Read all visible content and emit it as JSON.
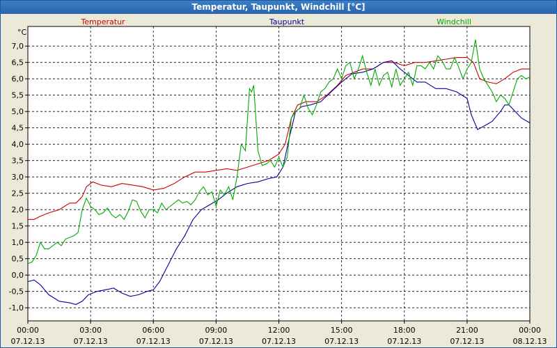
{
  "window": {
    "title": "Temperatur, Taupunkt, Windchill [°C]"
  },
  "chart_data": {
    "type": "line",
    "title": "Temperatur, Taupunkt, Windchill [°C]",
    "ylabel": "°C",
    "ylim": [
      -1.4,
      7.6
    ],
    "y_ticks": [
      "-1,0",
      "-0,5",
      "0,0",
      "0,5",
      "1,0",
      "1,5",
      "2,0",
      "2,5",
      "3,0",
      "3,5",
      "4,0",
      "4,5",
      "5,0",
      "5,5",
      "6,0",
      "6,5",
      "7,0"
    ],
    "x_ticks": [
      {
        "time": "00:00",
        "date": "07.12.13"
      },
      {
        "time": "03:00",
        "date": "07.12.13"
      },
      {
        "time": "06:00",
        "date": "07.12.13"
      },
      {
        "time": "09:00",
        "date": "07.12.13"
      },
      {
        "time": "12:00",
        "date": "07.12.13"
      },
      {
        "time": "15:00",
        "date": "07.12.13"
      },
      {
        "time": "18:00",
        "date": "07.12.13"
      },
      {
        "time": "21:00",
        "date": "07.12.13"
      },
      {
        "time": "00:00",
        "date": "08.12.13"
      }
    ],
    "grid": true,
    "series": [
      {
        "name": "Temperatur",
        "color": "#cc0000",
        "points": [
          [
            0.0,
            1.7
          ],
          [
            0.3,
            1.7
          ],
          [
            0.6,
            1.8
          ],
          [
            1.0,
            1.9
          ],
          [
            1.5,
            2.0
          ],
          [
            2.0,
            2.2
          ],
          [
            2.3,
            2.2
          ],
          [
            2.6,
            2.4
          ],
          [
            2.8,
            2.7
          ],
          [
            3.1,
            2.85
          ],
          [
            3.5,
            2.75
          ],
          [
            4.0,
            2.7
          ],
          [
            4.5,
            2.8
          ],
          [
            5.0,
            2.75
          ],
          [
            5.5,
            2.7
          ],
          [
            6.0,
            2.6
          ],
          [
            6.5,
            2.65
          ],
          [
            7.0,
            2.8
          ],
          [
            7.5,
            3.0
          ],
          [
            8.0,
            3.15
          ],
          [
            8.5,
            3.15
          ],
          [
            9.0,
            3.2
          ],
          [
            9.5,
            3.25
          ],
          [
            10.0,
            3.2
          ],
          [
            10.5,
            3.3
          ],
          [
            11.0,
            3.4
          ],
          [
            11.5,
            3.5
          ],
          [
            12.0,
            3.7
          ],
          [
            12.3,
            4.0
          ],
          [
            12.6,
            4.8
          ],
          [
            12.9,
            5.2
          ],
          [
            13.3,
            5.3
          ],
          [
            13.8,
            5.3
          ],
          [
            14.3,
            5.5
          ],
          [
            14.8,
            5.8
          ],
          [
            15.2,
            6.1
          ],
          [
            15.6,
            6.2
          ],
          [
            16.0,
            6.3
          ],
          [
            16.5,
            6.3
          ],
          [
            17.0,
            6.5
          ],
          [
            17.5,
            6.5
          ],
          [
            18.0,
            6.4
          ],
          [
            18.5,
            6.5
          ],
          [
            19.0,
            6.5
          ],
          [
            19.5,
            6.55
          ],
          [
            20.0,
            6.6
          ],
          [
            20.5,
            6.65
          ],
          [
            21.0,
            6.65
          ],
          [
            21.3,
            6.5
          ],
          [
            21.6,
            6.0
          ],
          [
            22.0,
            5.9
          ],
          [
            22.4,
            5.85
          ],
          [
            22.8,
            6.0
          ],
          [
            23.2,
            6.2
          ],
          [
            23.6,
            6.3
          ],
          [
            24.0,
            6.3
          ]
        ]
      },
      {
        "name": "Taupunkt",
        "color": "#000099",
        "points": [
          [
            0.0,
            -0.2
          ],
          [
            0.3,
            -0.15
          ],
          [
            0.6,
            -0.3
          ],
          [
            1.0,
            -0.6
          ],
          [
            1.5,
            -0.8
          ],
          [
            2.0,
            -0.85
          ],
          [
            2.3,
            -0.9
          ],
          [
            2.6,
            -0.8
          ],
          [
            2.9,
            -0.6
          ],
          [
            3.3,
            -0.5
          ],
          [
            3.7,
            -0.45
          ],
          [
            4.1,
            -0.4
          ],
          [
            4.5,
            -0.55
          ],
          [
            4.9,
            -0.65
          ],
          [
            5.3,
            -0.6
          ],
          [
            5.7,
            -0.5
          ],
          [
            6.0,
            -0.45
          ],
          [
            6.3,
            -0.2
          ],
          [
            6.7,
            0.3
          ],
          [
            7.1,
            0.8
          ],
          [
            7.5,
            1.2
          ],
          [
            7.9,
            1.7
          ],
          [
            8.3,
            2.0
          ],
          [
            8.7,
            2.15
          ],
          [
            9.1,
            2.3
          ],
          [
            9.5,
            2.5
          ],
          [
            10.0,
            2.7
          ],
          [
            10.5,
            2.8
          ],
          [
            11.0,
            2.85
          ],
          [
            11.5,
            2.95
          ],
          [
            11.9,
            3.0
          ],
          [
            12.2,
            3.3
          ],
          [
            12.5,
            4.2
          ],
          [
            12.8,
            5.0
          ],
          [
            13.1,
            5.15
          ],
          [
            13.5,
            5.2
          ],
          [
            14.0,
            5.3
          ],
          [
            14.5,
            5.6
          ],
          [
            15.0,
            5.9
          ],
          [
            15.5,
            6.15
          ],
          [
            16.0,
            6.2
          ],
          [
            16.5,
            6.3
          ],
          [
            17.0,
            6.5
          ],
          [
            17.4,
            6.55
          ],
          [
            17.8,
            6.3
          ],
          [
            18.2,
            6.1
          ],
          [
            18.6,
            5.9
          ],
          [
            19.0,
            5.9
          ],
          [
            19.5,
            5.7
          ],
          [
            20.0,
            5.7
          ],
          [
            20.5,
            5.6
          ],
          [
            21.0,
            5.4
          ],
          [
            21.2,
            4.9
          ],
          [
            21.5,
            4.45
          ],
          [
            21.8,
            4.55
          ],
          [
            22.2,
            4.7
          ],
          [
            22.6,
            5.0
          ],
          [
            22.8,
            5.2
          ],
          [
            23.0,
            5.2
          ],
          [
            23.3,
            5.0
          ],
          [
            23.6,
            4.8
          ],
          [
            24.0,
            4.65
          ]
        ]
      },
      {
        "name": "Windchill",
        "color": "#00aa00",
        "points": [
          [
            0.0,
            0.35
          ],
          [
            0.2,
            0.4
          ],
          [
            0.4,
            0.6
          ],
          [
            0.6,
            1.0
          ],
          [
            0.8,
            0.8
          ],
          [
            1.0,
            0.8
          ],
          [
            1.2,
            0.9
          ],
          [
            1.4,
            1.0
          ],
          [
            1.6,
            0.9
          ],
          [
            1.8,
            1.1
          ],
          [
            2.0,
            1.15
          ],
          [
            2.2,
            1.2
          ],
          [
            2.4,
            1.3
          ],
          [
            2.6,
            2.0
          ],
          [
            2.8,
            2.35
          ],
          [
            3.0,
            2.1
          ],
          [
            3.2,
            2.0
          ],
          [
            3.4,
            1.85
          ],
          [
            3.6,
            1.9
          ],
          [
            3.8,
            2.05
          ],
          [
            4.0,
            1.85
          ],
          [
            4.2,
            1.75
          ],
          [
            4.4,
            1.85
          ],
          [
            4.6,
            1.7
          ],
          [
            4.8,
            1.95
          ],
          [
            5.0,
            2.3
          ],
          [
            5.2,
            2.25
          ],
          [
            5.4,
            1.95
          ],
          [
            5.6,
            1.75
          ],
          [
            5.8,
            2.0
          ],
          [
            6.0,
            2.0
          ],
          [
            6.2,
            1.9
          ],
          [
            6.4,
            2.2
          ],
          [
            6.6,
            2.0
          ],
          [
            6.8,
            2.1
          ],
          [
            7.0,
            2.2
          ],
          [
            7.2,
            2.3
          ],
          [
            7.4,
            2.2
          ],
          [
            7.6,
            2.25
          ],
          [
            7.8,
            2.15
          ],
          [
            8.0,
            2.3
          ],
          [
            8.2,
            2.55
          ],
          [
            8.4,
            2.7
          ],
          [
            8.6,
            2.45
          ],
          [
            8.8,
            2.55
          ],
          [
            9.0,
            2.1
          ],
          [
            9.2,
            2.6
          ],
          [
            9.4,
            2.45
          ],
          [
            9.6,
            2.7
          ],
          [
            9.8,
            2.3
          ],
          [
            10.0,
            3.0
          ],
          [
            10.2,
            4.0
          ],
          [
            10.4,
            3.8
          ],
          [
            10.6,
            5.7
          ],
          [
            10.7,
            5.6
          ],
          [
            10.8,
            5.8
          ],
          [
            11.0,
            3.8
          ],
          [
            11.2,
            3.35
          ],
          [
            11.4,
            3.4
          ],
          [
            11.6,
            3.5
          ],
          [
            11.8,
            3.3
          ],
          [
            12.0,
            3.6
          ],
          [
            12.2,
            3.3
          ],
          [
            12.4,
            3.6
          ],
          [
            12.6,
            4.8
          ],
          [
            12.8,
            5.0
          ],
          [
            13.0,
            5.1
          ],
          [
            13.2,
            5.5
          ],
          [
            13.4,
            5.1
          ],
          [
            13.6,
            4.9
          ],
          [
            13.8,
            5.2
          ],
          [
            14.0,
            5.6
          ],
          [
            14.2,
            5.7
          ],
          [
            14.4,
            5.9
          ],
          [
            14.6,
            6.0
          ],
          [
            14.8,
            6.3
          ],
          [
            15.0,
            6.0
          ],
          [
            15.2,
            6.4
          ],
          [
            15.4,
            6.5
          ],
          [
            15.6,
            6.0
          ],
          [
            15.8,
            6.3
          ],
          [
            16.0,
            6.7
          ],
          [
            16.2,
            6.2
          ],
          [
            16.4,
            5.8
          ],
          [
            16.6,
            6.3
          ],
          [
            16.8,
            5.8
          ],
          [
            17.0,
            6.1
          ],
          [
            17.2,
            6.2
          ],
          [
            17.4,
            5.75
          ],
          [
            17.6,
            6.3
          ],
          [
            17.8,
            5.8
          ],
          [
            18.0,
            6.0
          ],
          [
            18.2,
            6.2
          ],
          [
            18.4,
            5.8
          ],
          [
            18.6,
            6.4
          ],
          [
            18.8,
            6.4
          ],
          [
            19.0,
            6.3
          ],
          [
            19.2,
            6.5
          ],
          [
            19.4,
            6.3
          ],
          [
            19.6,
            6.7
          ],
          [
            19.8,
            6.55
          ],
          [
            20.0,
            6.3
          ],
          [
            20.2,
            6.3
          ],
          [
            20.4,
            6.65
          ],
          [
            20.6,
            6.35
          ],
          [
            20.8,
            6.0
          ],
          [
            21.0,
            6.3
          ],
          [
            21.2,
            6.5
          ],
          [
            21.4,
            7.2
          ],
          [
            21.6,
            6.3
          ],
          [
            21.8,
            6.0
          ],
          [
            22.0,
            5.8
          ],
          [
            22.2,
            5.6
          ],
          [
            22.4,
            5.3
          ],
          [
            22.6,
            5.5
          ],
          [
            22.8,
            5.4
          ],
          [
            23.0,
            5.2
          ],
          [
            23.2,
            5.6
          ],
          [
            23.4,
            6.0
          ],
          [
            23.6,
            6.1
          ],
          [
            23.8,
            6.0
          ],
          [
            24.0,
            6.05
          ]
        ]
      }
    ]
  }
}
